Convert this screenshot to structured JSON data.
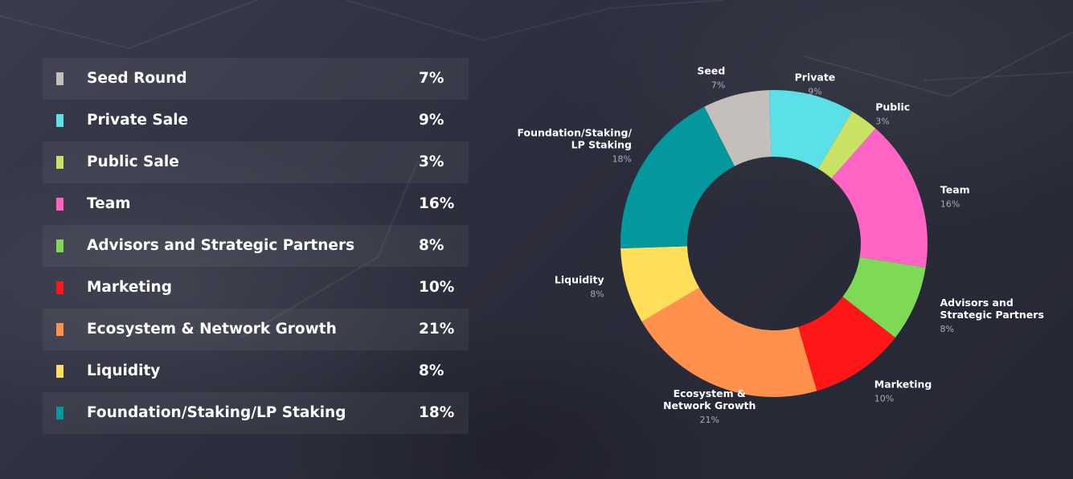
{
  "legend": [
    {
      "label": "Seed Round",
      "value": "7%",
      "color": "#c4bfbb"
    },
    {
      "label": "Private Sale",
      "value": "9%",
      "color": "#5ae0e6"
    },
    {
      "label": "Public Sale",
      "value": "3%",
      "color": "#c8e364"
    },
    {
      "label": "Team",
      "value": "16%",
      "color": "#ff63c3"
    },
    {
      "label": "Advisors and Strategic Partners",
      "value": "8%",
      "color": "#7ed957"
    },
    {
      "label": "Marketing",
      "value": "10%",
      "color": "#ff1717"
    },
    {
      "label": "Ecosystem & Network Growth",
      "value": "21%",
      "color": "#ff914d"
    },
    {
      "label": "Liquidity",
      "value": "8%",
      "color": "#ffde59"
    },
    {
      "label": "Foundation/Staking/LP Staking",
      "value": "18%",
      "color": "#03989e"
    }
  ],
  "chart_data": {
    "type": "pie",
    "donut": true,
    "start_angle_deg": -27,
    "categories": [
      "Seed",
      "Private",
      "Public",
      "Team",
      "Advisors and Strategic Partners",
      "Marketing",
      "Ecosystem & Network Growth",
      "Liquidity",
      "Foundation/Staking/LP Staking"
    ],
    "values": [
      7,
      9,
      3,
      16,
      8,
      10,
      21,
      8,
      18
    ],
    "colors": [
      "#c4bfbb",
      "#5ae0e6",
      "#c8e364",
      "#ff63c3",
      "#7ed957",
      "#ff1717",
      "#ff914d",
      "#ffde59",
      "#03989e"
    ],
    "slice_labels": [
      {
        "lines": [
          "Seed"
        ],
        "value": "7%",
        "align": "end"
      },
      {
        "lines": [
          "Private"
        ],
        "value": "9%",
        "align": "middle"
      },
      {
        "lines": [
          "Public"
        ],
        "value": "3%",
        "align": "start"
      },
      {
        "lines": [
          "Team"
        ],
        "value": "16%",
        "align": "start"
      },
      {
        "lines": [
          "Advisors and",
          "Strategic Partners"
        ],
        "value": "8%",
        "align": "start"
      },
      {
        "lines": [
          "Marketing"
        ],
        "value": "10%",
        "align": "start"
      },
      {
        "lines": [
          "Ecosystem &",
          "Network Growth"
        ],
        "value": "21%",
        "align": "middle"
      },
      {
        "lines": [
          "Liquidity"
        ],
        "value": "8%",
        "align": "end"
      },
      {
        "lines": [
          "Foundation/Staking/",
          "LP Staking"
        ],
        "value": "18%",
        "align": "end"
      }
    ]
  }
}
